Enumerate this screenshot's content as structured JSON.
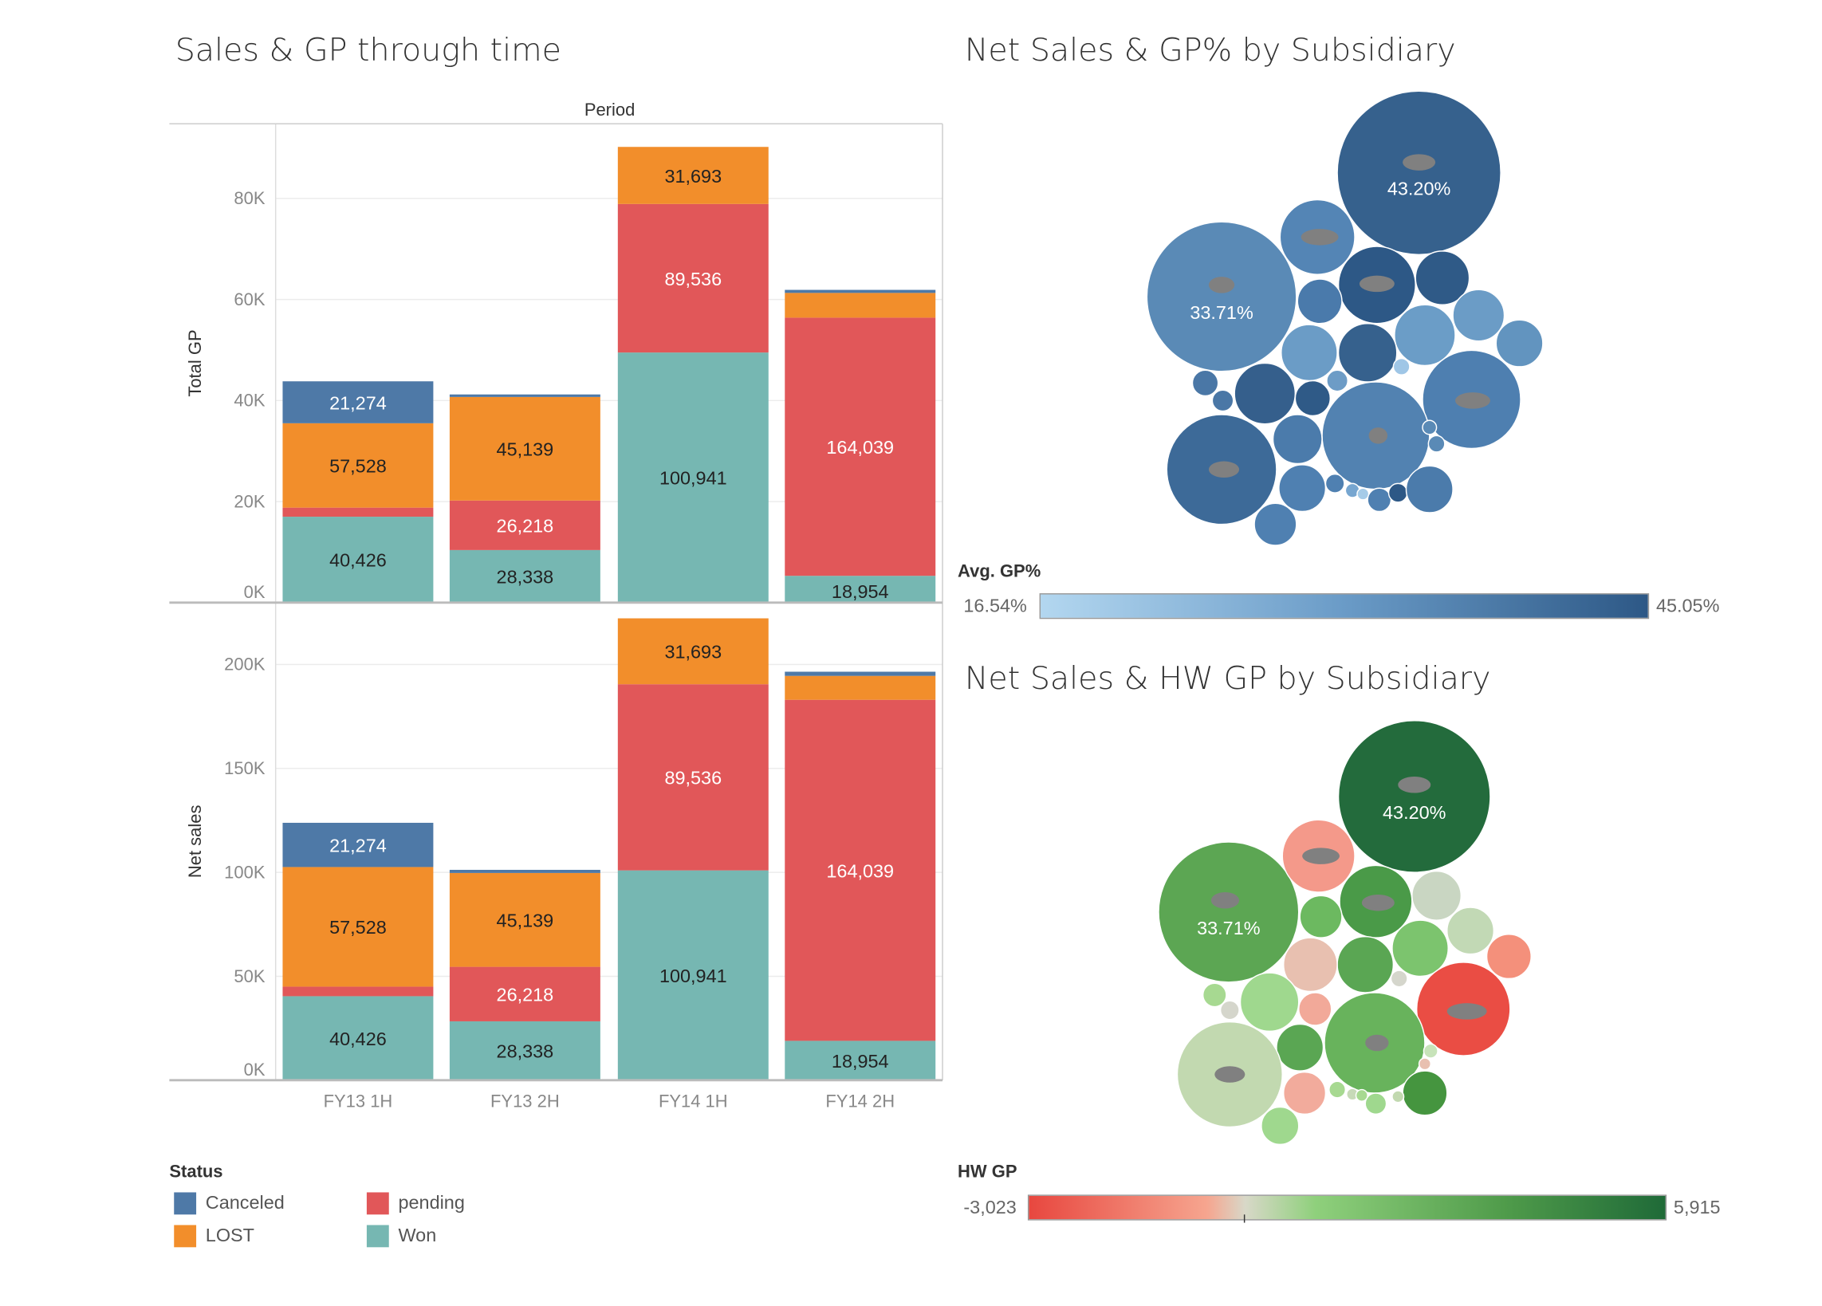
{
  "titles": {
    "left": "Sales & GP through time",
    "right_top": "Net Sales & GP% by Subsidiary",
    "right_bottom": "Net Sales & HW GP by Subsidiary"
  },
  "chart_data": [
    {
      "type": "bar",
      "stacked": true,
      "title": "Sales & GP through time",
      "column_header": "Period",
      "ylabel": "Total GP",
      "categories": [
        "FY13 1H",
        "FY13 2H",
        "FY14 1H",
        "FY14 2H"
      ],
      "ylim": [
        0,
        92000
      ],
      "yticks": [
        "0K",
        "20K",
        "40K",
        "60K",
        "80K"
      ],
      "ytick_values": [
        0,
        20000,
        40000,
        60000,
        80000
      ],
      "grid": true,
      "series": [
        {
          "name": "Won",
          "values": [
            17000,
            10400,
            49500,
            5300
          ],
          "labels": [
            "40,426",
            "28,338",
            "100,941",
            "18,954"
          ]
        },
        {
          "name": "pending",
          "values": [
            1800,
            9800,
            29400,
            51100
          ],
          "labels": [
            "",
            "26,218",
            "89,536",
            "164,039"
          ]
        },
        {
          "name": "LOST",
          "values": [
            16700,
            20500,
            11300,
            4900
          ],
          "labels": [
            "57,528",
            "45,139",
            "31,693",
            ""
          ]
        },
        {
          "name": "Canceled",
          "values": [
            8300,
            500,
            0,
            600
          ],
          "labels": [
            "21,274",
            "",
            "",
            ""
          ]
        }
      ]
    },
    {
      "type": "bar",
      "stacked": true,
      "ylabel": "Net sales",
      "categories": [
        "FY13 1H",
        "FY13 2H",
        "FY14 1H",
        "FY14 2H"
      ],
      "ylim": [
        0,
        223000
      ],
      "yticks": [
        "0K",
        "50K",
        "100K",
        "150K",
        "200K"
      ],
      "ytick_values": [
        0,
        50000,
        100000,
        150000,
        200000
      ],
      "grid": true,
      "series": [
        {
          "name": "Won",
          "values": [
            40426,
            28338,
            100941,
            18954
          ],
          "labels": [
            "40,426",
            "28,338",
            "100,941",
            "18,954"
          ]
        },
        {
          "name": "pending",
          "values": [
            4600,
            26218,
            89536,
            164039
          ],
          "labels": [
            "",
            "26,218",
            "89,536",
            "164,039"
          ]
        },
        {
          "name": "LOST",
          "values": [
            57528,
            45139,
            31693,
            11500
          ],
          "labels": [
            "57,528",
            "45,139",
            "31,693",
            ""
          ]
        },
        {
          "name": "Canceled",
          "values": [
            21274,
            1500,
            0,
            2000
          ],
          "labels": [
            "21,274",
            "",
            "",
            ""
          ]
        }
      ]
    }
  ],
  "legend": {
    "title": "Status",
    "items": [
      {
        "name": "Canceled",
        "color": "#4e79a7"
      },
      {
        "name": "pending",
        "color": "#e15759"
      },
      {
        "name": "LOST",
        "color": "#f28e2b"
      },
      {
        "name": "Won",
        "color": "#76b7b2"
      }
    ]
  },
  "bubble_top": {
    "labels": [
      "43.20%",
      "33.71%"
    ],
    "legend_title": "Avg. GP%",
    "min": "16.54%",
    "max": "45.05%",
    "colors": [
      "#b3d7f0",
      "#2d5886"
    ]
  },
  "bubble_bottom": {
    "labels": [
      "43.20%",
      "33.71%"
    ],
    "legend_title": "HW GP",
    "min": "-3,023",
    "max": "5,915",
    "colors": [
      "#e8473f",
      "#d8d8c8",
      "#1f6a38"
    ]
  }
}
